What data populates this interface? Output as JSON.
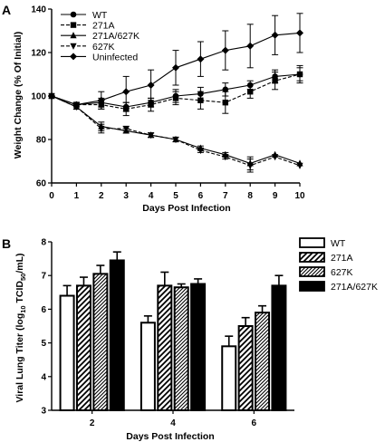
{
  "chart_data": [
    {
      "panel": "A",
      "type": "line",
      "xlabel": "Days Post Infection",
      "ylabel": "Weight Change (% Of Initial)",
      "x": [
        0,
        1,
        2,
        3,
        4,
        5,
        6,
        7,
        8,
        9,
        10
      ],
      "xlim": [
        0,
        10
      ],
      "ylim": [
        60,
        140
      ],
      "yticks": [
        60,
        80,
        100,
        120,
        140
      ],
      "grid": false,
      "legend_position": "top-left",
      "series": [
        {
          "name": "WT",
          "marker": "circle",
          "dash": "solid",
          "values": [
            100,
            96,
            97,
            95,
            97,
            100,
            101,
            103,
            105,
            109,
            110
          ],
          "errors": [
            0,
            1,
            2,
            2,
            2,
            3,
            3,
            3,
            2,
            3,
            3
          ]
        },
        {
          "name": "271A",
          "marker": "square",
          "dash": "dashed",
          "values": [
            100,
            96,
            96,
            94,
            96,
            99,
            98,
            97,
            102,
            107,
            110
          ],
          "errors": [
            0,
            1,
            2,
            3,
            3,
            3,
            4,
            5,
            3,
            4,
            4
          ]
        },
        {
          "name": "271A/627K",
          "marker": "triangle-up",
          "dash": "solid",
          "values": [
            100,
            95,
            86,
            84,
            82,
            80,
            76,
            73,
            69,
            73,
            69
          ],
          "errors": [
            0,
            1,
            2,
            1,
            1,
            1,
            1,
            1,
            3,
            0,
            0
          ]
        },
        {
          "name": "627K",
          "marker": "triangle-down",
          "dash": "dashed",
          "values": [
            100,
            95,
            85,
            85,
            82,
            80,
            75,
            72,
            68,
            72,
            68
          ],
          "errors": [
            0,
            1,
            2,
            1,
            1,
            1,
            1,
            1,
            3,
            0,
            0
          ]
        },
        {
          "name": "Uninfected",
          "marker": "diamond",
          "dash": "solid",
          "values": [
            100,
            96,
            98,
            102,
            105,
            113,
            117,
            121,
            123,
            128,
            129
          ],
          "errors": [
            0,
            1,
            4,
            7,
            7,
            8,
            8,
            9,
            10,
            9,
            9
          ]
        }
      ]
    },
    {
      "panel": "B",
      "type": "bar",
      "xlabel": "Days Post Infection",
      "ylabel": "Viral Lung Titer (log10 TCID50/mL)",
      "ylabel_parts": [
        "Viral Lung Titer (log",
        "10",
        " TCID",
        "50",
        "/mL)"
      ],
      "categories": [
        "2",
        "4",
        "6"
      ],
      "ylim": [
        3,
        8
      ],
      "yticks": [
        3,
        4,
        5,
        6,
        7,
        8
      ],
      "grid": false,
      "legend_position": "right",
      "series": [
        {
          "name": "WT",
          "pattern": "open",
          "values": [
            6.4,
            5.6,
            4.9
          ],
          "errors": [
            0.3,
            0.2,
            0.3
          ]
        },
        {
          "name": "271A",
          "pattern": "hatch-back",
          "values": [
            6.7,
            6.7,
            5.5
          ],
          "errors": [
            0.25,
            0.4,
            0.25
          ]
        },
        {
          "name": "627K",
          "pattern": "hatch-fine",
          "values": [
            7.05,
            6.65,
            5.9
          ],
          "errors": [
            0.25,
            0.1,
            0.2
          ]
        },
        {
          "name": "271A/627K",
          "pattern": "solid",
          "values": [
            7.45,
            6.75,
            6.7
          ],
          "errors": [
            0.25,
            0.15,
            0.3
          ]
        }
      ]
    }
  ]
}
